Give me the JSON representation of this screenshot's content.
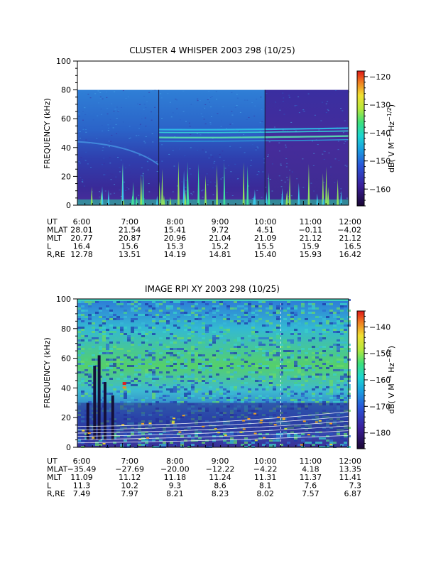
{
  "chart_data": [
    {
      "type": "heatmap",
      "title": "CLUSTER 4 WHISPER 2003 298 (10/25)",
      "ylabel": "FREQUENCY (kHz)",
      "ylim": [
        0,
        100
      ],
      "y_ticks": [
        "0",
        "20",
        "40",
        "60",
        "80",
        "100"
      ],
      "x_ticks": [
        "6:00",
        "7:00",
        "8:00",
        "9:00",
        "10:00",
        "11:00",
        "12:00"
      ],
      "colorbar": {
        "label": "dB( V M⁻¹ Hz⁻¹ᐟ²)",
        "label_text": "dB( V M",
        "range": [
          -166,
          -118
        ],
        "ticks": [
          "-120",
          "-130",
          "-140",
          "-150",
          "-160"
        ]
      },
      "ephemeris": {
        "rows": [
          {
            "name": "UT",
            "values": [
              "6:00",
              "7:00",
              "8:00",
              "9:00",
              "10:00",
              "11:00",
              "12:00"
            ]
          },
          {
            "name": "MLAT",
            "values": [
              "28.01",
              "21.54",
              "15.41",
              "9.72",
              "4.51",
              "−0.11",
              "−4.02"
            ]
          },
          {
            "name": "MLT",
            "values": [
              "20.77",
              "20.87",
              "20.96",
              "21.04",
              "21.09",
              "21.12",
              "21.12"
            ]
          },
          {
            "name": "L",
            "values": [
              "16.4",
              "15.6",
              "15.3",
              "15.2",
              "15.5",
              "15.9",
              "16.5"
            ]
          },
          {
            "name": "R,RE",
            "values": [
              "12.78",
              "13.51",
              "14.19",
              "14.81",
              "15.40",
              "15.93",
              "16.42"
            ]
          }
        ]
      }
    },
    {
      "type": "heatmap",
      "title": "IMAGE RPI XY 2003 298 (10/25)",
      "ylabel": "FREQUENCY (kHz)",
      "ylim": [
        0,
        100
      ],
      "y_ticks": [
        "0",
        "20",
        "40",
        "60",
        "80",
        "100"
      ],
      "x_ticks": [
        "6:00",
        "7:00",
        "8:00",
        "9:00",
        "10:00",
        "11:00",
        "12:00"
      ],
      "colorbar": {
        "label_text": "dB( V M",
        "range": [
          -186,
          -134
        ],
        "ticks": [
          "-140",
          "-150",
          "-160",
          "-170",
          "-180"
        ]
      },
      "ephemeris": {
        "rows": [
          {
            "name": "UT",
            "values": [
              "6:00",
              "7:00",
              "8:00",
              "9:00",
              "10:00",
              "11:00",
              "12:00"
            ]
          },
          {
            "name": "MLAT",
            "values": [
              "−35.49",
              "−27.69",
              "−20.00",
              "−12.22",
              "−4.22",
              "4.18",
              "13.35"
            ]
          },
          {
            "name": "MLT",
            "values": [
              "11.09",
              "11.12",
              "11.18",
              "11.24",
              "11.31",
              "11.37",
              "11.41"
            ]
          },
          {
            "name": "L",
            "values": [
              "11.3",
              "10.2",
              "9.3",
              "8.6",
              "8.1",
              "7.6",
              "7.3"
            ]
          },
          {
            "name": "R,RE",
            "values": [
              "7.49",
              "7.97",
              "8.21",
              "8.23",
              "8.02",
              "7.57",
              "6.87"
            ]
          }
        ]
      }
    }
  ]
}
